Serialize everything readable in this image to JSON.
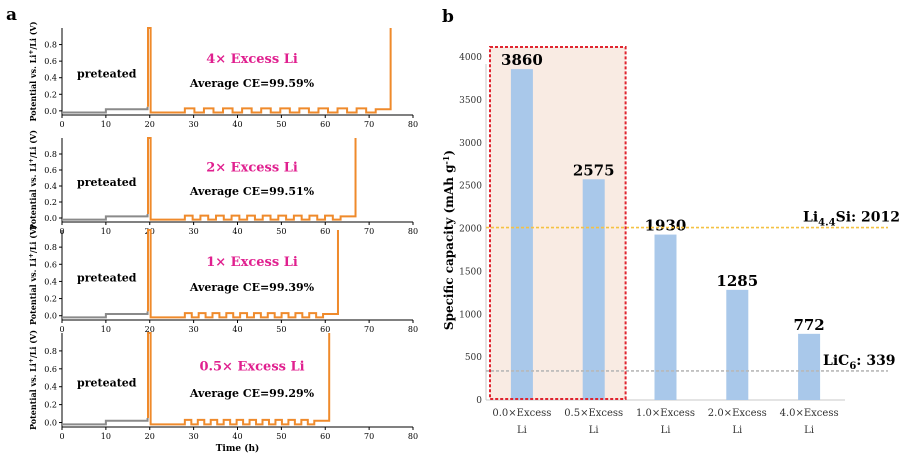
{
  "panel_a": {
    "letter": "a",
    "xlabel": "Time (h)",
    "ylabel_prefix": "Potential vs. Li",
    "ylabel_sup": "+",
    "ylabel_suffix": "/Li (V)",
    "pre_label": "preteated"
  },
  "panel_b": {
    "letter": "b",
    "ylabel": "Specific capacity (mAh g",
    "ylabel_sup": "-1",
    "ylabel_end": ")",
    "ref_lines": [
      {
        "label_main": "Li",
        "label_sub": "4.4",
        "label_rest": "Si: 2012",
        "value": 2012,
        "color": "#f5c242"
      },
      {
        "label_main": "LiC",
        "label_sub": "6",
        "label_rest": ": 339",
        "value": 339,
        "color": "#b8b8b8"
      }
    ]
  },
  "chart_data": [
    {
      "type": "line",
      "title": "",
      "xlabel": "Time (h)",
      "ylabel": "Potential vs. Li+/Li (V)",
      "xlim": [
        0,
        80
      ],
      "ylim": [
        -0.05,
        1.0
      ],
      "x_ticks": [
        0,
        10,
        20,
        30,
        40,
        50,
        60,
        70,
        80
      ],
      "y_ticks": [
        0.0,
        0.2,
        0.4,
        0.6,
        0.8
      ],
      "panels": [
        {
          "excess_label": "4× Excess Li",
          "ce_label": "Average CE=99.59%",
          "end_time": 75.5,
          "cycles": 10
        },
        {
          "excess_label": "2× Excess Li",
          "ce_label": "Average CE=99.51%",
          "end_time": 67.5,
          "cycles": 10
        },
        {
          "excess_label": "1× Excess Li",
          "ce_label": "Average CE=99.39%",
          "end_time": 63.5,
          "cycles": 10
        },
        {
          "excess_label": "0.5× Excess Li",
          "ce_label": "Average CE=99.29%",
          "end_time": 61.5,
          "cycles": 10
        }
      ]
    },
    {
      "type": "bar",
      "title": "",
      "xlabel": "",
      "ylabel": "Specific capacity (mAh g-1)",
      "ylim": [
        0,
        4200
      ],
      "y_ticks": [
        0,
        500,
        1000,
        1500,
        2000,
        2500,
        3000,
        3500,
        4000
      ],
      "categories": [
        {
          "line1": "0.0×Excess",
          "line2": "Li"
        },
        {
          "line1": "0.5×Excess",
          "line2": "Li"
        },
        {
          "line1": "1.0×Excess",
          "line2": "Li"
        },
        {
          "line1": "2.0×Excess",
          "line2": "Li"
        },
        {
          "line1": "4.0×Excess",
          "line2": "Li"
        }
      ],
      "values": [
        3860,
        2575,
        1930,
        1285,
        772
      ],
      "bar_color": "#a9c8ea",
      "highlight_box_color": "#e0242f",
      "highlight_categories": [
        0,
        1
      ]
    }
  ]
}
